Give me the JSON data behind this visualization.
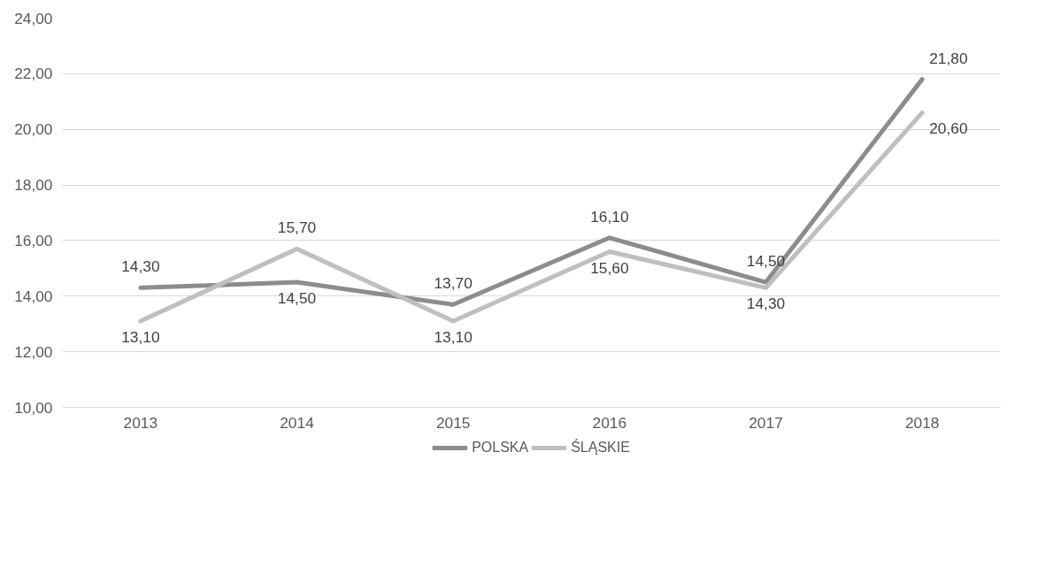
{
  "chart_data": {
    "type": "line",
    "categories": [
      "2013",
      "2014",
      "2015",
      "2016",
      "2017",
      "2018"
    ],
    "series": [
      {
        "name": "POLSKA",
        "color": "#8c8c8c",
        "values": [
          14.3,
          14.5,
          13.7,
          16.1,
          14.5,
          21.8
        ],
        "value_labels": [
          "14,30",
          "14,50",
          "13,70",
          "16,10",
          "14,50",
          "21,80"
        ]
      },
      {
        "name": "ŚLĄSKIE",
        "color": "#bfbfbf",
        "values": [
          13.1,
          15.7,
          13.1,
          15.6,
          14.3,
          20.6
        ],
        "value_labels": [
          "13,10",
          "15,70",
          "13,10",
          "15,60",
          "14,30",
          "20,60"
        ]
      }
    ],
    "ylim": [
      10,
      24
    ],
    "yticks": [
      {
        "value": 10,
        "label": "10,00"
      },
      {
        "value": 12,
        "label": "12,00"
      },
      {
        "value": 14,
        "label": "14,00"
      },
      {
        "value": 16,
        "label": "16,00"
      },
      {
        "value": 18,
        "label": "18,00"
      },
      {
        "value": 20,
        "label": "20,00"
      },
      {
        "value": 22,
        "label": "22,00"
      },
      {
        "value": 24,
        "label": "24,00"
      }
    ],
    "grid": "y",
    "legend": "bottom",
    "line_style": "solid",
    "marker": "none"
  }
}
